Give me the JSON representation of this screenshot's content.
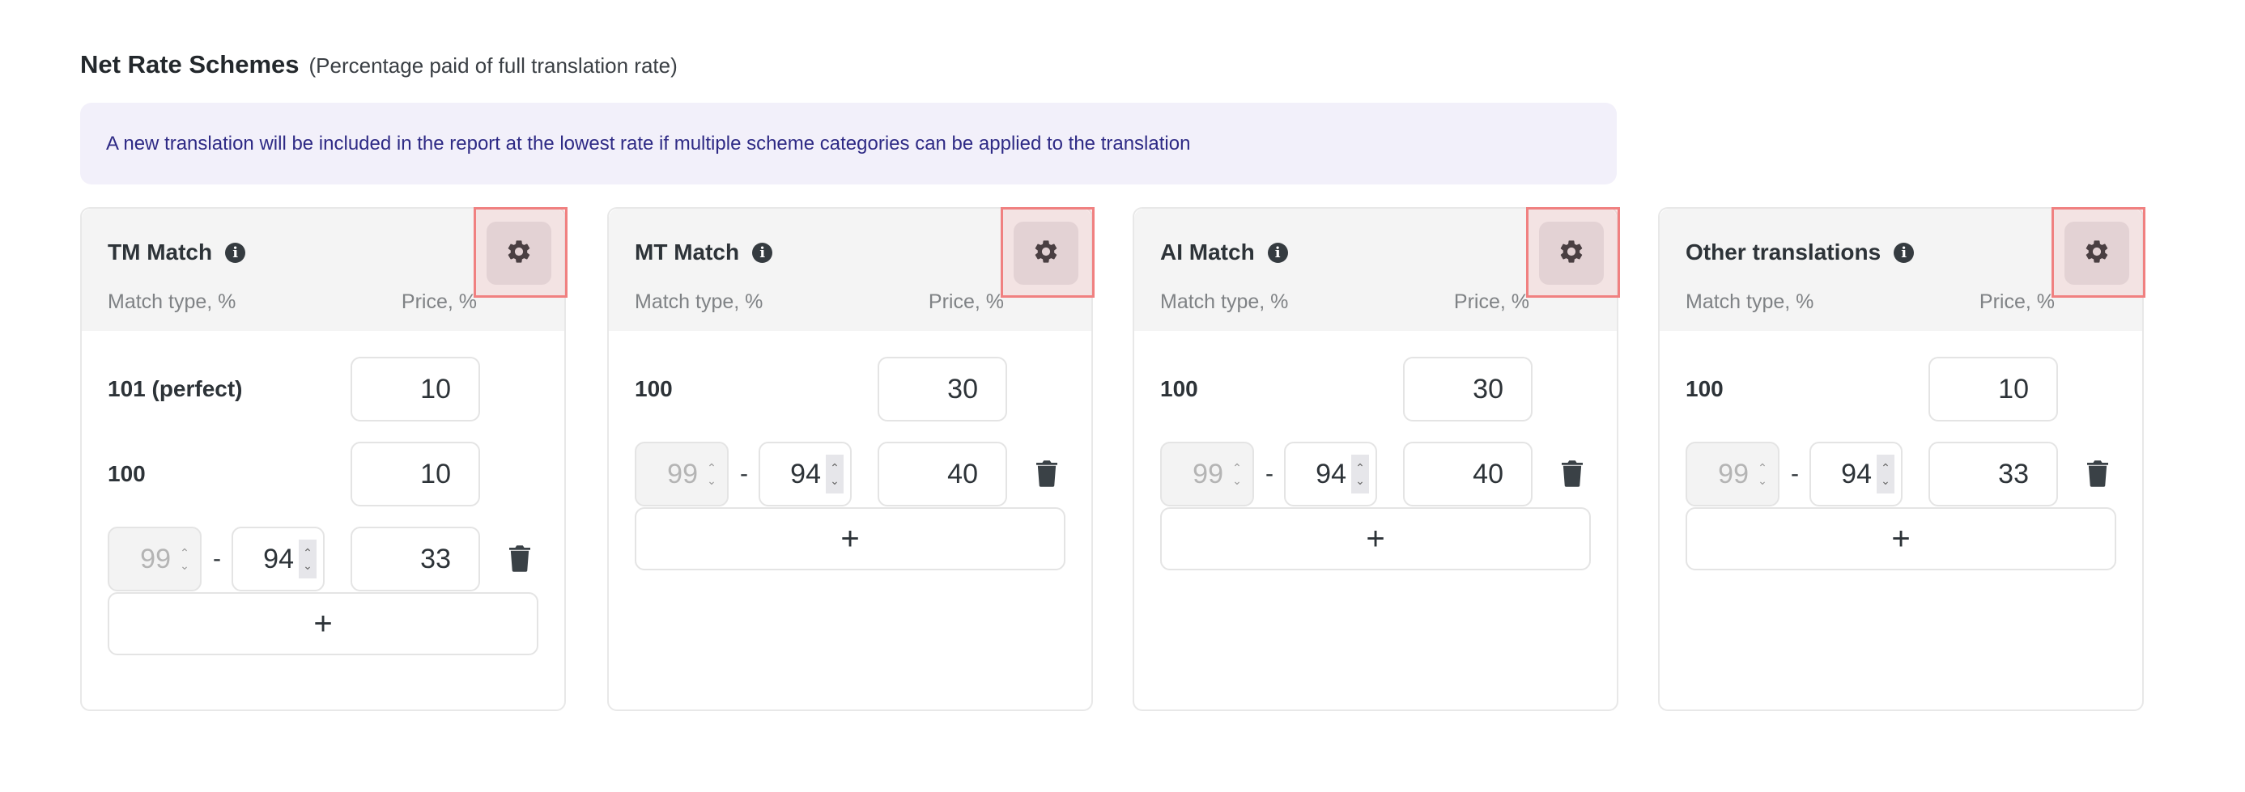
{
  "section": {
    "title": "Net Rate Schemes",
    "subtitle": "(Percentage paid of full translation rate)",
    "notice": "A new translation will be included in the report at the lowest rate if multiple scheme categories can be applied to the translation"
  },
  "columns": {
    "match_type": "Match type, %",
    "price": "Price, %"
  },
  "add_label": "+",
  "info_glyph": "i",
  "range_separator": "-",
  "highlight_color": "#f08080",
  "cards": [
    {
      "title": "TM Match",
      "fixed_rows": [
        {
          "label": "101 (perfect)",
          "price": "10"
        },
        {
          "label": "100",
          "price": "10"
        }
      ],
      "range_rows": [
        {
          "min": "99",
          "max": "94",
          "price": "33"
        }
      ]
    },
    {
      "title": "MT Match",
      "fixed_rows": [
        {
          "label": "100",
          "price": "30"
        }
      ],
      "range_rows": [
        {
          "min": "99",
          "max": "94",
          "price": "40"
        }
      ]
    },
    {
      "title": "AI Match",
      "fixed_rows": [
        {
          "label": "100",
          "price": "30"
        }
      ],
      "range_rows": [
        {
          "min": "99",
          "max": "94",
          "price": "40"
        }
      ]
    },
    {
      "title": "Other translations",
      "fixed_rows": [
        {
          "label": "100",
          "price": "10"
        }
      ],
      "range_rows": [
        {
          "min": "99",
          "max": "94",
          "price": "33"
        }
      ]
    }
  ]
}
